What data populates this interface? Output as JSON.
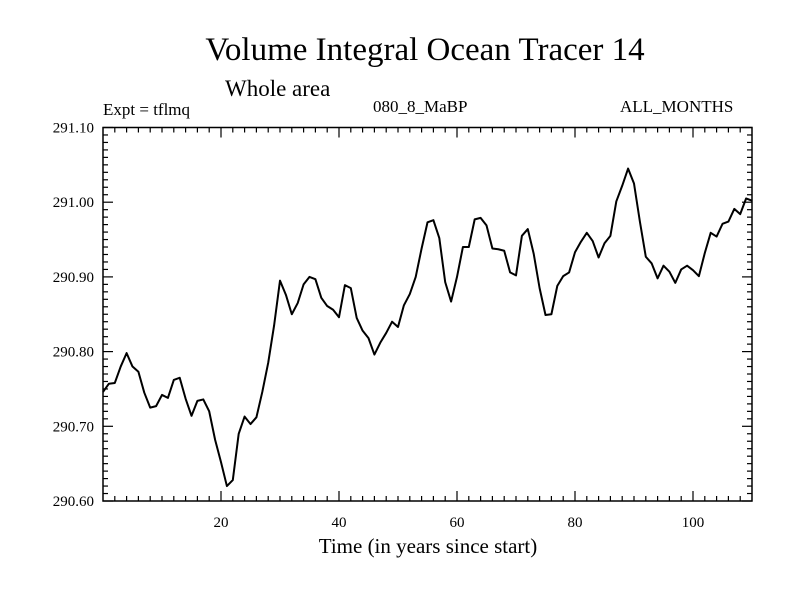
{
  "chart_data": {
    "type": "line",
    "title": "Volume Integral Ocean Tracer 14",
    "subtitle": "Whole area",
    "expt_label": "Expt = tflmq",
    "run_label": "080_8_MaBP",
    "months_label": "ALL_MONTHS",
    "xlabel": "Time (in years since start)",
    "ylabel": "",
    "xlim": [
      0,
      110
    ],
    "ylim": [
      290.6,
      291.1
    ],
    "x_ticks": [
      20,
      40,
      60,
      80,
      100
    ],
    "x_tick_labels": [
      "20",
      "40",
      "60",
      "80",
      "100"
    ],
    "y_ticks": [
      290.6,
      290.7,
      290.8,
      290.9,
      291.0,
      291.1
    ],
    "y_tick_labels": [
      "290.60",
      "290.70",
      "290.80",
      "290.90",
      "291.00",
      "291.10"
    ],
    "grid": false,
    "series": [
      {
        "name": "Volume Integral Ocean Tracer 14",
        "x": [
          0,
          1,
          2,
          3,
          4,
          5,
          6,
          7,
          8,
          9,
          10,
          11,
          12,
          13,
          14,
          15,
          16,
          17,
          18,
          19,
          20,
          21,
          22,
          23,
          24,
          25,
          26,
          27,
          28,
          29,
          30,
          31,
          32,
          33,
          34,
          35,
          36,
          37,
          38,
          39,
          40,
          41,
          42,
          43,
          44,
          45,
          46,
          47,
          48,
          49,
          50,
          51,
          52,
          53,
          54,
          55,
          56,
          57,
          58,
          59,
          60,
          61,
          62,
          63,
          64,
          65,
          66,
          67,
          68,
          69,
          70,
          71,
          72,
          73,
          74,
          75,
          76,
          77,
          78,
          79,
          80,
          81,
          82,
          83,
          84,
          85,
          86,
          87,
          88,
          89,
          90,
          91,
          92,
          93,
          94,
          95,
          96,
          97,
          98,
          99,
          100,
          101,
          102,
          103,
          104,
          105,
          106,
          107,
          108,
          109,
          110
        ],
        "values": [
          290.746,
          290.757,
          290.758,
          290.78,
          290.798,
          290.78,
          290.773,
          290.745,
          290.725,
          290.727,
          290.742,
          290.738,
          290.762,
          290.765,
          290.737,
          290.714,
          290.734,
          290.736,
          290.72,
          290.682,
          290.652,
          290.62,
          290.628,
          290.69,
          290.713,
          290.703,
          290.712,
          290.746,
          290.785,
          290.835,
          290.895,
          290.876,
          290.85,
          290.865,
          290.89,
          290.9,
          290.897,
          290.872,
          290.861,
          290.856,
          290.846,
          290.889,
          290.885,
          290.845,
          290.828,
          290.818,
          290.796,
          290.812,
          290.825,
          290.84,
          290.833,
          290.862,
          290.877,
          290.9,
          290.938,
          290.973,
          290.976,
          290.952,
          290.893,
          290.867,
          290.9,
          290.94,
          290.94,
          290.977,
          290.979,
          290.969,
          290.938,
          290.937,
          290.935,
          290.906,
          290.902,
          290.955,
          290.964,
          290.931,
          290.885,
          290.849,
          290.85,
          290.888,
          290.901,
          290.906,
          290.933,
          290.947,
          290.959,
          290.948,
          290.926,
          290.945,
          290.955,
          291.001,
          291.022,
          291.045,
          291.025,
          290.974,
          290.927,
          290.918,
          290.898,
          290.915,
          290.907,
          290.892,
          290.91,
          290.915,
          290.909,
          290.901,
          290.932,
          290.959,
          290.954,
          290.971,
          290.974,
          290.991,
          290.984,
          291.005,
          291.002
        ]
      }
    ]
  }
}
